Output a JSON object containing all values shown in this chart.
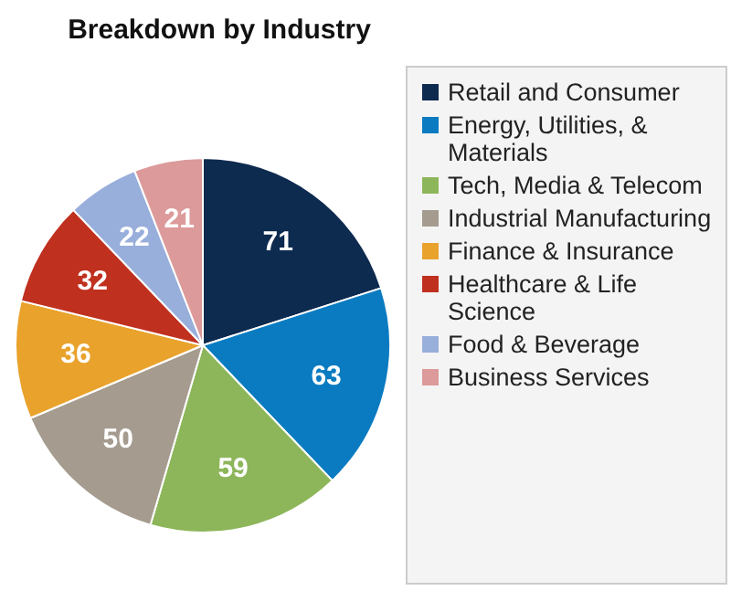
{
  "chart_data": {
    "type": "pie",
    "title": "Breakdown by Industry",
    "categories": [
      "Retail and Consumer",
      "Energy, Utilities, & Materials",
      "Tech, Media & Telecom",
      "Industrial Manufacturing",
      "Finance & Insurance",
      "Healthcare & Life Science",
      "Food & Beverage",
      "Business Services"
    ],
    "values": [
      71,
      63,
      59,
      50,
      36,
      32,
      22,
      21
    ],
    "colors": [
      "#0d2a4f",
      "#0a7bc1",
      "#8db65a",
      "#a59b8f",
      "#e9a22c",
      "#c0301f",
      "#98aedb",
      "#dc9a9a"
    ],
    "data_labels": true,
    "legend": "right"
  }
}
